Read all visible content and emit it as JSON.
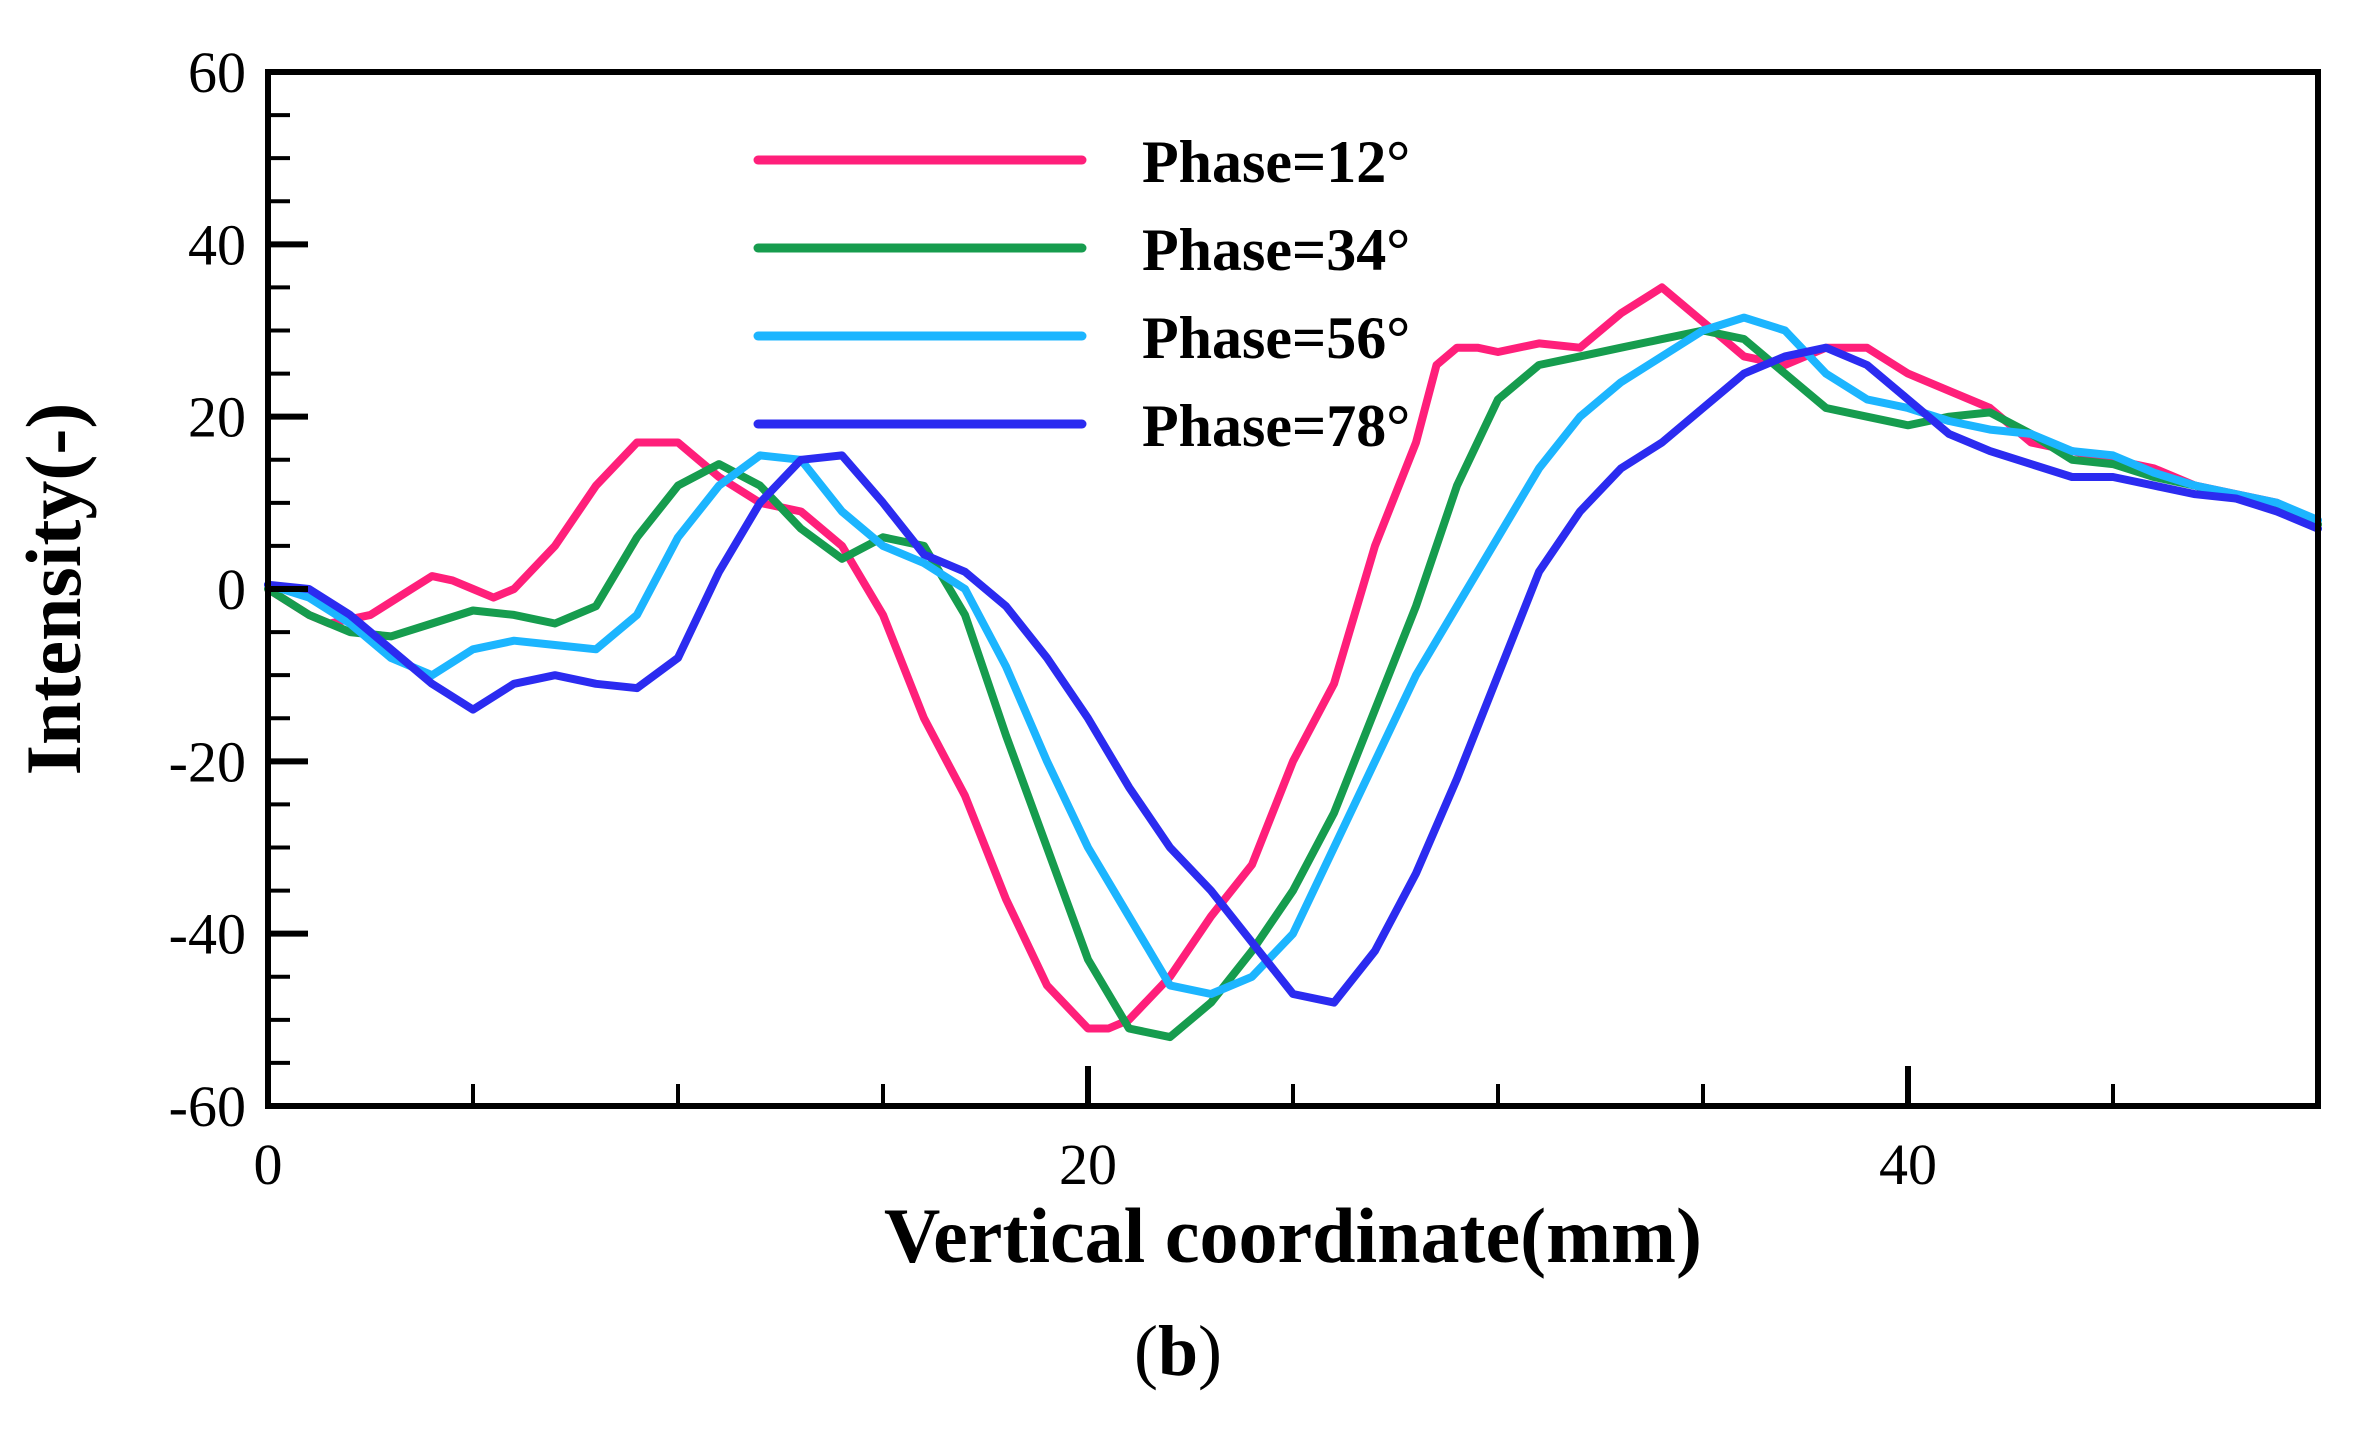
{
  "chart_data": {
    "type": "line",
    "title": "",
    "xlabel": "Vertical coordinate(mm)",
    "ylabel": "Intensity(-)",
    "caption_open": "(",
    "caption_letter": "b",
    "caption_close": ")",
    "xlim": [
      0,
      50
    ],
    "ylim": [
      -60,
      60
    ],
    "x_major_ticks": [
      0,
      20,
      40
    ],
    "x_minor_step": 5,
    "y_major_ticks": [
      -60,
      -40,
      -20,
      0,
      20,
      40,
      60
    ],
    "y_minor_step": 5,
    "grid": false,
    "legend_position": "top-center",
    "series": [
      {
        "name": "Phase=12°",
        "color": "#ff1f7a",
        "x": [
          0,
          1,
          1.5,
          2.5,
          3.5,
          4,
          4.5,
          5,
          5.5,
          6,
          7,
          8,
          9,
          10,
          10.5,
          11,
          12,
          13,
          14,
          15,
          16,
          17,
          18,
          19,
          20,
          20.5,
          21,
          22,
          23,
          24,
          25,
          26,
          27,
          28,
          28.5,
          29,
          29.5,
          30,
          31,
          32,
          33,
          34,
          35,
          35.5,
          36,
          37,
          38,
          39,
          40,
          41,
          42,
          43,
          44,
          45,
          46,
          47,
          48,
          49,
          50
        ],
        "y": [
          0,
          -3,
          -4,
          -3,
          0,
          1.5,
          1,
          0,
          -1,
          0,
          5,
          12,
          17,
          17,
          15,
          13,
          10,
          9,
          5,
          -3,
          -15,
          -24,
          -36,
          -46,
          -51,
          -51,
          -50,
          -45,
          -38,
          -32,
          -20,
          -11,
          5,
          17,
          26,
          28,
          28,
          27.5,
          28.5,
          28,
          32,
          35,
          31,
          29,
          27,
          26,
          28,
          28,
          25,
          23,
          21,
          17,
          16,
          15,
          14,
          12,
          11,
          10,
          7.5
        ]
      },
      {
        "name": "Phase=34°",
        "color": "#169c4e",
        "x": [
          0,
          1,
          2,
          3,
          4,
          5,
          6,
          7,
          8,
          9,
          10,
          11,
          12,
          13,
          14,
          15,
          16,
          17,
          18,
          19,
          20,
          21,
          22,
          23,
          24,
          25,
          26,
          27,
          28,
          29,
          30,
          31,
          32,
          33,
          34,
          35,
          36,
          37,
          38,
          39,
          40,
          41,
          42,
          43,
          44,
          45,
          46,
          47,
          48,
          49,
          50
        ],
        "y": [
          0,
          -3,
          -5,
          -5.5,
          -4,
          -2.5,
          -3,
          -4,
          -2,
          6,
          12,
          14.5,
          12,
          7,
          3.5,
          6,
          5,
          -3,
          -17,
          -30,
          -43,
          -51,
          -52,
          -48,
          -42,
          -35,
          -26,
          -14,
          -2,
          12,
          22,
          26,
          27,
          28,
          29,
          30,
          29,
          25,
          21,
          20,
          19,
          20,
          20.5,
          18,
          15,
          14.5,
          13,
          12,
          10.5,
          9.5,
          7.5
        ]
      },
      {
        "name": "Phase=56°",
        "color": "#1cb5ff",
        "x": [
          0,
          1,
          2,
          3,
          4,
          5,
          6,
          7,
          8,
          9,
          10,
          11,
          12,
          13,
          14,
          15,
          16,
          17,
          18,
          19,
          20,
          21,
          22,
          23,
          24,
          25,
          26,
          27,
          28,
          29,
          30,
          31,
          32,
          33,
          34,
          35,
          36,
          37,
          38,
          39,
          40,
          41,
          42,
          43,
          44,
          45,
          46,
          47,
          48,
          49,
          50
        ],
        "y": [
          0.5,
          -1,
          -4,
          -8,
          -10,
          -7,
          -6,
          -6.5,
          -7,
          -3,
          6,
          12,
          15.5,
          15,
          9,
          5,
          3,
          0,
          -9,
          -20,
          -30,
          -38,
          -46,
          -47,
          -45,
          -40,
          -30,
          -20,
          -10,
          -2,
          6,
          14,
          20,
          24,
          27,
          30,
          31.5,
          30,
          25,
          22,
          21,
          19.5,
          18.5,
          18,
          16,
          15.5,
          13.5,
          12,
          11,
          10,
          8
        ]
      },
      {
        "name": "Phase=78°",
        "color": "#2b2bf0",
        "x": [
          0,
          1,
          2,
          3,
          4,
          5,
          6,
          7,
          8,
          9,
          10,
          11,
          12,
          13,
          14,
          15,
          16,
          17,
          18,
          19,
          20,
          21,
          22,
          23,
          24,
          25,
          26,
          27,
          28,
          29,
          30,
          31,
          32,
          33,
          34,
          35,
          36,
          37,
          38,
          39,
          40,
          41,
          42,
          43,
          44,
          45,
          46,
          47,
          48,
          49,
          50
        ],
        "y": [
          0.5,
          0,
          -3,
          -7,
          -11,
          -14,
          -11,
          -10,
          -11,
          -11.5,
          -8,
          2,
          10,
          15,
          15.5,
          10,
          4,
          2,
          -2,
          -8,
          -15,
          -23,
          -30,
          -35,
          -41,
          -47,
          -48,
          -42,
          -33,
          -22,
          -10,
          2,
          9,
          14,
          17,
          21,
          25,
          27,
          28,
          26,
          22,
          18,
          16,
          14.5,
          13,
          13,
          12,
          11,
          10.5,
          9,
          7
        ]
      }
    ]
  }
}
